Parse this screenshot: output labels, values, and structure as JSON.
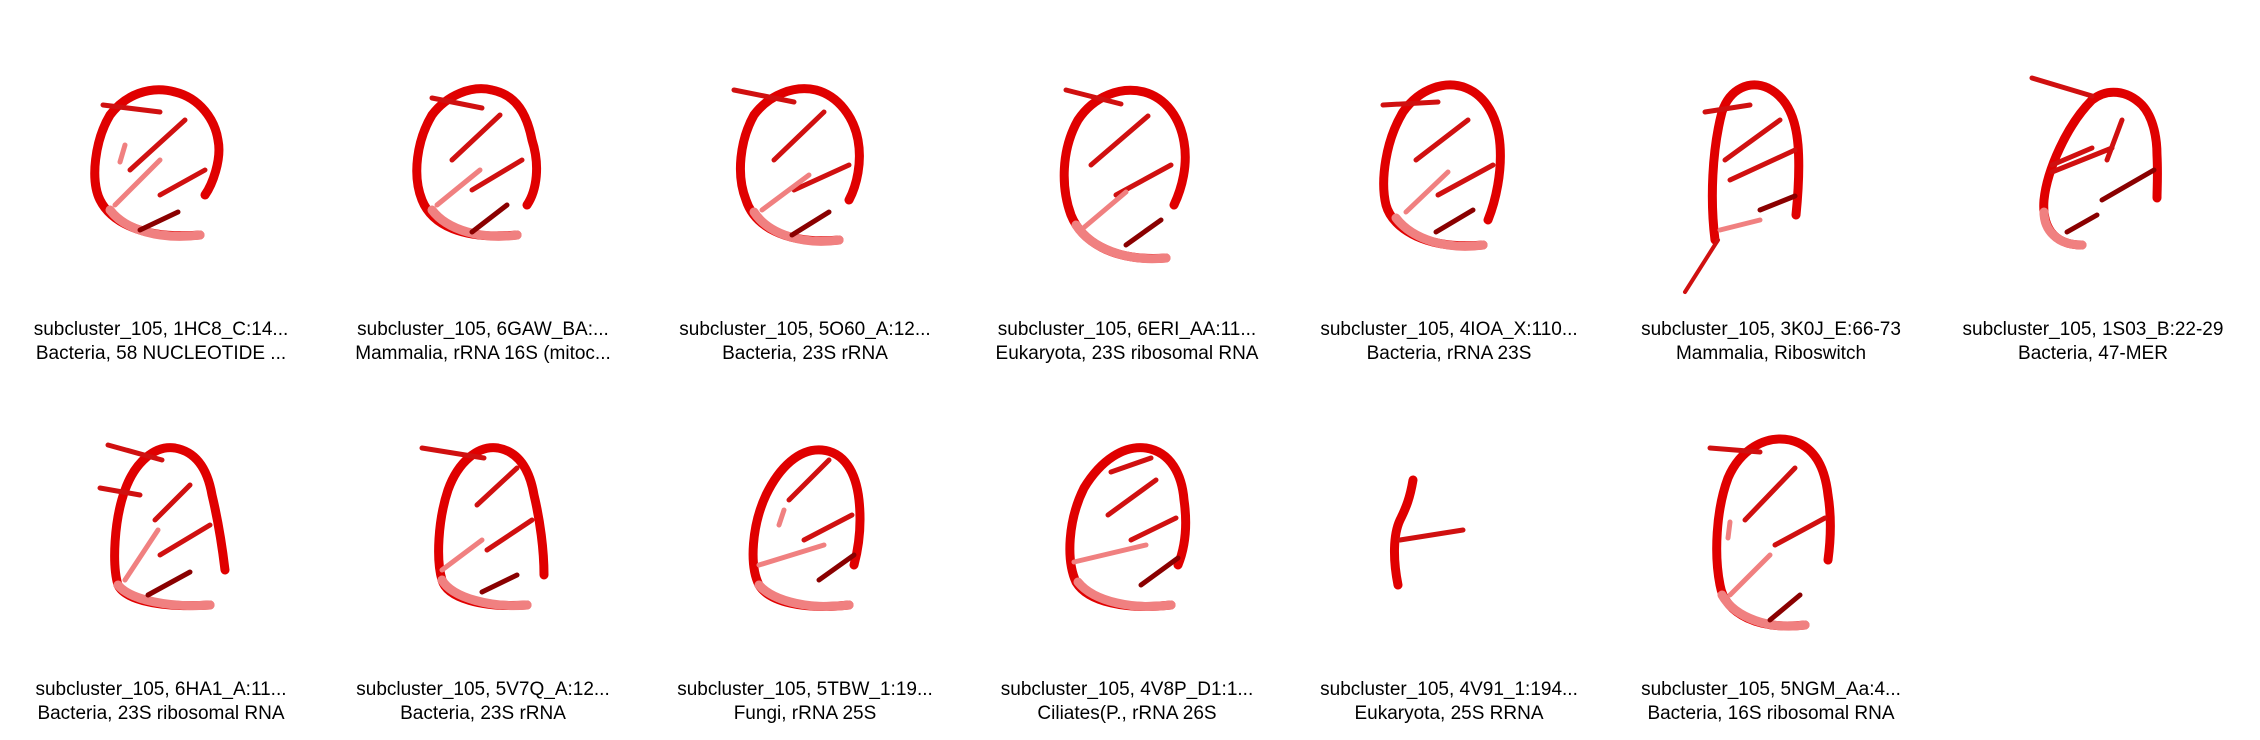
{
  "colors": {
    "backbone": "#e00000",
    "base": "#d01010",
    "faded": "#f08080",
    "dark": "#8a0000"
  },
  "panels": [
    {
      "id": "1HC8",
      "line1": "subcluster_105, 1HC8_C:14...",
      "line2": "Bacteria, 58 NUCLEOTIDE ..."
    },
    {
      "id": "6GAW",
      "line1": "subcluster_105, 6GAW_BA:...",
      "line2": "Mammalia, rRNA 16S (mitoc..."
    },
    {
      "id": "5O60",
      "line1": "subcluster_105, 5O60_A:12...",
      "line2": "Bacteria, 23S rRNA"
    },
    {
      "id": "6ERI",
      "line1": "subcluster_105, 6ERI_AA:11...",
      "line2": "Eukaryota, 23S ribosomal RNA"
    },
    {
      "id": "4IOA",
      "line1": "subcluster_105, 4IOA_X:110...",
      "line2": "Bacteria, rRNA 23S"
    },
    {
      "id": "3K0J",
      "line1": "subcluster_105, 3K0J_E:66-73",
      "line2": "Mammalia, Riboswitch"
    },
    {
      "id": "1S03",
      "line1": "subcluster_105, 1S03_B:22-29",
      "line2": "Bacteria, 47-MER"
    },
    {
      "id": "6HA1",
      "line1": "subcluster_105, 6HA1_A:11...",
      "line2": "Bacteria, 23S ribosomal RNA"
    },
    {
      "id": "5V7Q",
      "line1": "subcluster_105, 5V7Q_A:12...",
      "line2": "Bacteria, 23S rRNA"
    },
    {
      "id": "5TBW",
      "line1": "subcluster_105, 5TBW_1:19...",
      "line2": "Fungi, rRNA 25S"
    },
    {
      "id": "4V8P",
      "line1": "subcluster_105, 4V8P_D1:1...",
      "line2": "Ciliates(P., rRNA 26S"
    },
    {
      "id": "4V91",
      "line1": "subcluster_105, 4V91_1:194...",
      "line2": "Eukaryota, 25S RRNA"
    },
    {
      "id": "5NGM",
      "line1": "subcluster_105, 5NGM_Aa:4...",
      "line2": "Bacteria, 16S ribosomal RNA"
    }
  ]
}
